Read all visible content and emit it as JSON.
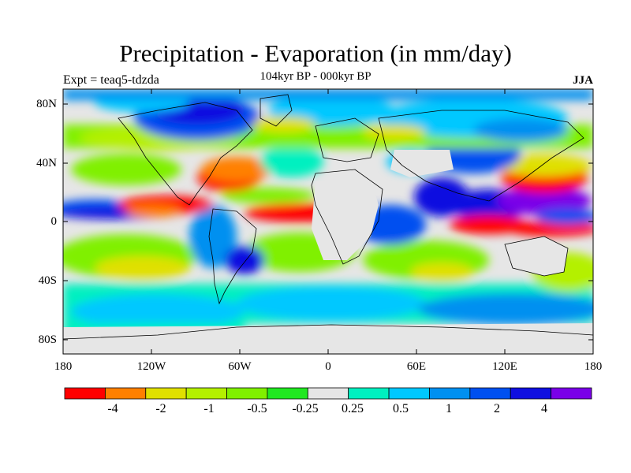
{
  "title": "Precipitation - Evaporation (in mm/day)",
  "subtitle": "104kyr BP - 000kyr BP",
  "experiment_label": "Expt = teaq5-tdzda",
  "season_label": "JJA",
  "map": {
    "lon_ticks": [
      "180",
      "120W",
      "60W",
      "0",
      "60E",
      "120E",
      "180"
    ],
    "lat_ticks": [
      "80N",
      "40N",
      "0",
      "40S",
      "80S"
    ],
    "land_color": "#e6e6e6"
  },
  "colorbar": {
    "colors": [
      "#ff0000",
      "#ff8000",
      "#e0e000",
      "#b4f000",
      "#80f000",
      "#20e820",
      "#e6e6e6",
      "#00f0c0",
      "#00c8ff",
      "#0090f0",
      "#0050f0",
      "#1010e0",
      "#7a00e8"
    ],
    "labels": [
      "-4",
      "-2",
      "-1",
      "-0.5",
      "-0.25",
      "0.25",
      "0.5",
      "1",
      "2",
      "4"
    ]
  }
}
